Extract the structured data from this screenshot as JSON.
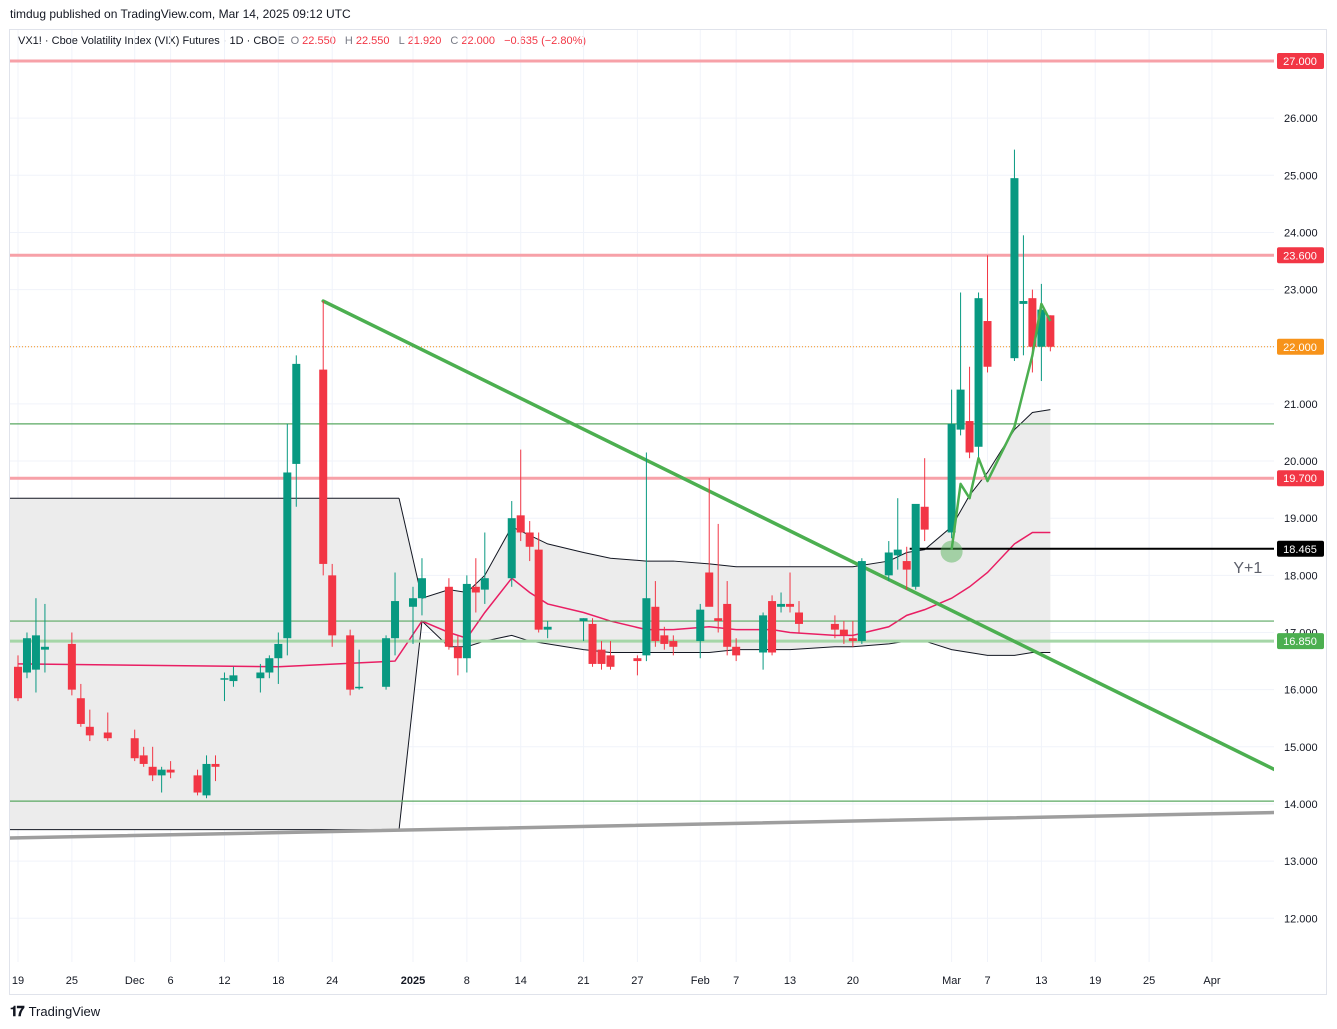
{
  "header": {
    "publisher": "timdug published on TradingView.com, Mar 14, 2025 09:12 UTC"
  },
  "legend": {
    "symbol": "VX1! · Cboe Volatility Index (VIX) Futures · 1D · CBOE",
    "o_label": "O",
    "o_value": "22.550",
    "h_label": "H",
    "h_value": "22.550",
    "l_label": "L",
    "l_value": "21.920",
    "c_label": "C",
    "c_value": "22.000",
    "change": "−0.635 (−2.80%)"
  },
  "footer": {
    "brand": "TradingView",
    "logo_icon": "tradingview-logo-icon"
  },
  "colors": {
    "up": "#089981",
    "down": "#f23645",
    "resistance": "#f7a1a8",
    "support": "#5aa862",
    "trendline": "#4caf50",
    "basis": "#e91e63",
    "band_fill": "#ececec",
    "last_price": "#f7931a",
    "tick_label_fill": "#f23645",
    "black_level": "#000000",
    "grey_line": "#9e9e9e"
  },
  "chart_data": {
    "type": "candlestick",
    "symbol": "VX1!",
    "y_axis": {
      "ticks": [
        "12.000",
        "13.000",
        "14.000",
        "15.000",
        "16.000",
        "17.000",
        "18.000",
        "19.000",
        "20.000",
        "21.000",
        "22.000",
        "23.000",
        "24.000",
        "25.000",
        "26.000"
      ],
      "range": [
        11.3,
        27.8
      ],
      "side": "right"
    },
    "x_axis": {
      "ticks": [
        {
          "label": "19",
          "date": "2024-11-19",
          "bold": false
        },
        {
          "label": "25",
          "date": "2024-11-25",
          "bold": false
        },
        {
          "label": "Dec",
          "date": "2024-12-02",
          "bold": false
        },
        {
          "label": "6",
          "date": "2024-12-06",
          "bold": false
        },
        {
          "label": "12",
          "date": "2024-12-12",
          "bold": false
        },
        {
          "label": "18",
          "date": "2024-12-18",
          "bold": false
        },
        {
          "label": "24",
          "date": "2024-12-24",
          "bold": false
        },
        {
          "label": "2025",
          "date": "2025-01-02",
          "bold": true
        },
        {
          "label": "8",
          "date": "2025-01-08",
          "bold": false
        },
        {
          "label": "14",
          "date": "2025-01-14",
          "bold": false
        },
        {
          "label": "21",
          "date": "2025-01-21",
          "bold": false
        },
        {
          "label": "27",
          "date": "2025-01-27",
          "bold": false
        },
        {
          "label": "Feb",
          "date": "2025-02-03",
          "bold": false
        },
        {
          "label": "7",
          "date": "2025-02-07",
          "bold": false
        },
        {
          "label": "13",
          "date": "2025-02-13",
          "bold": false
        },
        {
          "label": "20",
          "date": "2025-02-20",
          "bold": false
        },
        {
          "label": "Mar",
          "date": "2025-03-03",
          "bold": false
        },
        {
          "label": "7",
          "date": "2025-03-07",
          "bold": false
        },
        {
          "label": "13",
          "date": "2025-03-13",
          "bold": false
        },
        {
          "label": "19",
          "date": "2025-03-19",
          "bold": false
        },
        {
          "label": "25",
          "date": "2025-03-25",
          "bold": false
        },
        {
          "label": "Apr",
          "date": "2025-04-01",
          "bold": false
        }
      ]
    },
    "candles": [
      {
        "date": "2024-11-19",
        "o": 16.4,
        "h": 16.6,
        "l": 15.8,
        "c": 15.85
      },
      {
        "date": "2024-11-20",
        "o": 16.3,
        "h": 17.0,
        "l": 16.2,
        "c": 16.9
      },
      {
        "date": "2024-11-21",
        "o": 16.35,
        "h": 17.6,
        "l": 15.95,
        "c": 16.95
      },
      {
        "date": "2024-11-22",
        "o": 16.7,
        "h": 17.5,
        "l": 16.3,
        "c": 16.75
      },
      {
        "date": "2024-11-25",
        "o": 16.8,
        "h": 17.0,
        "l": 15.9,
        "c": 16.0
      },
      {
        "date": "2024-11-26",
        "o": 15.85,
        "h": 16.1,
        "l": 15.35,
        "c": 15.4
      },
      {
        "date": "2024-11-27",
        "o": 15.35,
        "h": 15.65,
        "l": 15.1,
        "c": 15.2
      },
      {
        "date": "2024-11-29",
        "o": 15.25,
        "h": 15.6,
        "l": 15.1,
        "c": 15.15
      },
      {
        "date": "2024-12-02",
        "o": 15.15,
        "h": 15.3,
        "l": 14.75,
        "c": 14.8
      },
      {
        "date": "2024-12-03",
        "o": 14.85,
        "h": 15.0,
        "l": 14.65,
        "c": 14.7
      },
      {
        "date": "2024-12-04",
        "o": 14.65,
        "h": 15.0,
        "l": 14.4,
        "c": 14.5
      },
      {
        "date": "2024-12-05",
        "o": 14.5,
        "h": 14.65,
        "l": 14.2,
        "c": 14.6
      },
      {
        "date": "2024-12-06",
        "o": 14.6,
        "h": 14.75,
        "l": 14.45,
        "c": 14.55
      },
      {
        "date": "2024-12-09",
        "o": 14.5,
        "h": 14.6,
        "l": 14.15,
        "c": 14.2
      },
      {
        "date": "2024-12-10",
        "o": 14.15,
        "h": 14.85,
        "l": 14.1,
        "c": 14.7
      },
      {
        "date": "2024-12-11",
        "o": 14.7,
        "h": 14.85,
        "l": 14.4,
        "c": 14.65
      },
      {
        "date": "2024-12-12",
        "o": 16.2,
        "h": 16.3,
        "l": 15.8,
        "c": 16.2
      },
      {
        "date": "2024-12-13",
        "o": 16.15,
        "h": 16.4,
        "l": 16.05,
        "c": 16.25
      },
      {
        "date": "2024-12-16",
        "o": 16.2,
        "h": 16.45,
        "l": 15.95,
        "c": 16.3
      },
      {
        "date": "2024-12-17",
        "o": 16.3,
        "h": 16.6,
        "l": 16.2,
        "c": 16.55
      },
      {
        "date": "2024-12-18",
        "o": 16.55,
        "h": 17.0,
        "l": 16.1,
        "c": 16.8
      },
      {
        "date": "2024-12-19",
        "o": 16.9,
        "h": 20.65,
        "l": 16.6,
        "c": 19.8
      },
      {
        "date": "2024-12-20",
        "o": 19.95,
        "h": 21.85,
        "l": 19.2,
        "c": 21.7
      },
      {
        "date": "2024-12-23",
        "o": 21.6,
        "h": 22.8,
        "l": 18.0,
        "c": 18.2
      },
      {
        "date": "2024-12-24",
        "o": 18.0,
        "h": 18.2,
        "l": 16.75,
        "c": 16.95
      },
      {
        "date": "2024-12-26",
        "o": 16.95,
        "h": 17.05,
        "l": 15.9,
        "c": 16.0
      },
      {
        "date": "2024-12-27",
        "o": 16.05,
        "h": 16.7,
        "l": 16.0,
        "c": 16.05
      },
      {
        "date": "2024-12-30",
        "o": 16.05,
        "h": 16.95,
        "l": 16.0,
        "c": 16.9
      },
      {
        "date": "2024-12-31",
        "o": 16.9,
        "h": 18.05,
        "l": 16.6,
        "c": 17.55
      },
      {
        "date": "2025-01-02",
        "o": 17.45,
        "h": 17.8,
        "l": 16.8,
        "c": 17.6
      },
      {
        "date": "2025-01-03",
        "o": 17.6,
        "h": 18.3,
        "l": 17.3,
        "c": 17.95
      },
      {
        "date": "2025-01-06",
        "o": 17.8,
        "h": 17.95,
        "l": 16.7,
        "c": 16.75
      },
      {
        "date": "2025-01-07",
        "o": 16.75,
        "h": 16.95,
        "l": 16.25,
        "c": 16.55
      },
      {
        "date": "2025-01-08",
        "o": 16.55,
        "h": 18.0,
        "l": 16.3,
        "c": 17.85
      },
      {
        "date": "2025-01-09",
        "o": 17.8,
        "h": 18.3,
        "l": 17.35,
        "c": 17.7
      },
      {
        "date": "2025-01-10",
        "o": 17.75,
        "h": 18.75,
        "l": 17.5,
        "c": 17.95
      },
      {
        "date": "2025-01-13",
        "o": 17.95,
        "h": 19.3,
        "l": 17.8,
        "c": 19.0
      },
      {
        "date": "2025-01-14",
        "o": 19.05,
        "h": 20.2,
        "l": 18.6,
        "c": 18.75
      },
      {
        "date": "2025-01-15",
        "o": 18.75,
        "h": 18.95,
        "l": 18.25,
        "c": 18.5
      },
      {
        "date": "2025-01-16",
        "o": 18.45,
        "h": 18.75,
        "l": 17.0,
        "c": 17.05
      },
      {
        "date": "2025-01-17",
        "o": 17.05,
        "h": 17.2,
        "l": 16.9,
        "c": 17.1
      },
      {
        "date": "2025-01-21",
        "o": 17.2,
        "h": 17.25,
        "l": 16.85,
        "c": 17.25
      },
      {
        "date": "2025-01-22",
        "o": 17.15,
        "h": 17.25,
        "l": 16.4,
        "c": 16.45
      },
      {
        "date": "2025-01-23",
        "o": 16.7,
        "h": 16.85,
        "l": 16.35,
        "c": 16.45
      },
      {
        "date": "2025-01-24",
        "o": 16.6,
        "h": 16.85,
        "l": 16.35,
        "c": 16.4
      },
      {
        "date": "2025-01-27",
        "o": 16.55,
        "h": 16.6,
        "l": 16.25,
        "c": 16.5
      },
      {
        "date": "2025-01-28",
        "o": 16.6,
        "h": 20.15,
        "l": 16.5,
        "c": 17.6
      },
      {
        "date": "2025-01-29",
        "o": 17.45,
        "h": 17.9,
        "l": 16.75,
        "c": 16.85
      },
      {
        "date": "2025-01-30",
        "o": 16.95,
        "h": 17.1,
        "l": 16.7,
        "c": 16.8
      },
      {
        "date": "2025-01-31",
        "o": 16.85,
        "h": 16.95,
        "l": 16.6,
        "c": 16.75
      },
      {
        "date": "2025-02-03",
        "o": 16.85,
        "h": 17.5,
        "l": 16.55,
        "c": 17.4
      },
      {
        "date": "2025-02-04",
        "o": 18.05,
        "h": 19.7,
        "l": 17.5,
        "c": 17.45
      },
      {
        "date": "2025-02-05",
        "o": 17.25,
        "h": 18.9,
        "l": 17.0,
        "c": 17.2
      },
      {
        "date": "2025-02-06",
        "o": 17.5,
        "h": 17.9,
        "l": 16.6,
        "c": 16.75
      },
      {
        "date": "2025-02-07",
        "o": 16.75,
        "h": 16.9,
        "l": 16.5,
        "c": 16.6
      },
      {
        "date": "2025-02-10",
        "o": 16.65,
        "h": 17.35,
        "l": 16.35,
        "c": 17.3
      },
      {
        "date": "2025-02-11",
        "o": 17.55,
        "h": 17.65,
        "l": 16.6,
        "c": 16.65
      },
      {
        "date": "2025-02-12",
        "o": 17.45,
        "h": 17.7,
        "l": 17.35,
        "c": 17.5
      },
      {
        "date": "2025-02-13",
        "o": 17.5,
        "h": 18.05,
        "l": 17.35,
        "c": 17.45
      },
      {
        "date": "2025-02-14",
        "o": 17.35,
        "h": 17.55,
        "l": 17.0,
        "c": 17.15
      },
      {
        "date": "2025-02-18",
        "o": 17.15,
        "h": 17.3,
        "l": 16.9,
        "c": 17.05
      },
      {
        "date": "2025-02-19",
        "o": 17.05,
        "h": 17.2,
        "l": 16.8,
        "c": 16.95
      },
      {
        "date": "2025-02-20",
        "o": 16.9,
        "h": 17.2,
        "l": 16.75,
        "c": 16.85
      },
      {
        "date": "2025-02-21",
        "o": 16.85,
        "h": 18.3,
        "l": 16.8,
        "c": 18.25
      },
      {
        "date": "2025-02-24",
        "o": 18.0,
        "h": 18.6,
        "l": 17.9,
        "c": 18.4
      },
      {
        "date": "2025-02-25",
        "o": 18.35,
        "h": 19.35,
        "l": 18.1,
        "c": 18.45
      },
      {
        "date": "2025-02-26",
        "o": 18.25,
        "h": 18.5,
        "l": 17.75,
        "c": 18.1
      },
      {
        "date": "2025-02-27",
        "o": 17.8,
        "h": 19.2,
        "l": 17.75,
        "c": 19.25
      },
      {
        "date": "2025-02-28",
        "o": 19.2,
        "h": 20.05,
        "l": 18.6,
        "c": 18.8
      },
      {
        "date": "2025-03-03",
        "o": 18.75,
        "h": 21.25,
        "l": 18.65,
        "c": 20.65
      },
      {
        "date": "2025-03-04",
        "o": 20.55,
        "h": 22.95,
        "l": 20.45,
        "c": 21.25
      },
      {
        "date": "2025-03-05",
        "o": 20.7,
        "h": 21.65,
        "l": 20.05,
        "c": 20.15
      },
      {
        "date": "2025-03-06",
        "o": 20.25,
        "h": 22.95,
        "l": 20.05,
        "c": 22.85
      },
      {
        "date": "2025-03-07",
        "o": 22.45,
        "h": 23.6,
        "l": 21.55,
        "c": 21.65
      },
      {
        "date": "2025-03-10",
        "o": 21.8,
        "h": 25.45,
        "l": 21.75,
        "c": 24.95
      },
      {
        "date": "2025-03-11",
        "o": 22.75,
        "h": 23.95,
        "l": 21.85,
        "c": 22.8
      },
      {
        "date": "2025-03-12",
        "o": 22.85,
        "h": 23.0,
        "l": 21.55,
        "c": 22.0
      },
      {
        "date": "2025-03-13",
        "o": 22.0,
        "h": 23.1,
        "l": 21.4,
        "c": 22.65
      },
      {
        "date": "2025-03-14",
        "o": 22.55,
        "h": 22.55,
        "l": 21.92,
        "c": 22.0
      }
    ],
    "keltner_band": {
      "segment1": {
        "x": [
          "2024-11-19",
          "2024-12-31"
        ],
        "upper": 19.35,
        "lower": 13.55
      },
      "segment2": {
        "x": [
          "2025-01-03",
          "2025-01-06",
          "2025-01-08",
          "2025-01-10",
          "2025-01-13",
          "2025-01-15",
          "2025-01-17",
          "2025-01-21",
          "2025-01-24",
          "2025-01-28",
          "2025-01-31",
          "2025-02-04",
          "2025-02-07",
          "2025-02-11",
          "2025-02-13",
          "2025-02-18",
          "2025-02-20",
          "2025-02-24",
          "2025-02-26",
          "2025-02-28",
          "2025-03-03",
          "2025-03-05",
          "2025-03-07",
          "2025-03-10",
          "2025-03-12",
          "2025-03-14"
        ],
        "upper": [
          17.6,
          17.75,
          17.7,
          18.0,
          18.85,
          18.7,
          18.55,
          18.4,
          18.3,
          18.25,
          18.25,
          18.2,
          18.15,
          18.15,
          18.15,
          18.15,
          18.15,
          18.25,
          18.4,
          18.45,
          18.85,
          19.4,
          19.8,
          20.55,
          20.85,
          20.9
        ],
        "basis": [
          17.2,
          17.0,
          16.9,
          17.35,
          17.95,
          17.7,
          17.5,
          17.35,
          17.2,
          17.05,
          17.05,
          17.1,
          17.05,
          17.05,
          17.0,
          16.95,
          16.95,
          17.1,
          17.3,
          17.4,
          17.6,
          17.8,
          18.05,
          18.55,
          18.75,
          18.75
        ],
        "lower": [
          17.2,
          16.75,
          16.75,
          16.85,
          16.95,
          16.85,
          16.8,
          16.7,
          16.65,
          16.65,
          16.65,
          16.65,
          16.7,
          16.7,
          16.7,
          16.75,
          16.75,
          16.8,
          16.85,
          16.85,
          16.7,
          16.65,
          16.6,
          16.6,
          16.65,
          16.65
        ]
      },
      "basis_segment1": {
        "x": [
          "2024-11-19",
          "2024-12-18",
          "2024-12-31"
        ],
        "values": [
          16.45,
          16.4,
          16.5
        ]
      }
    },
    "horizontal_levels": [
      {
        "price": 27.0,
        "label": "27.000",
        "kind": "resistance"
      },
      {
        "price": 23.6,
        "label": "23.600",
        "kind": "resistance"
      },
      {
        "price": 22.0,
        "label": "22.000",
        "kind": "last_price"
      },
      {
        "price": 20.65,
        "label": "",
        "kind": "support"
      },
      {
        "price": 19.7,
        "label": "19.700",
        "kind": "resistance"
      },
      {
        "price": 18.465,
        "label": "18.465",
        "kind": "black_level",
        "start": "2025-02-27"
      },
      {
        "price": 17.2,
        "label": "",
        "kind": "support"
      },
      {
        "price": 16.85,
        "label": "16.850",
        "kind": "support_thick"
      },
      {
        "price": 14.05,
        "label": "",
        "kind": "support"
      }
    ],
    "trendlines": [
      {
        "from": {
          "date": "2024-12-23",
          "price": 22.8
        },
        "to": {
          "date": "2025-04-08",
          "price": 14.6
        },
        "color": "trendline"
      },
      {
        "from": {
          "date": "2024-11-17",
          "price": 13.4
        },
        "to": {
          "date": "2025-04-08",
          "price": 13.85
        },
        "color": "grey_line"
      }
    ],
    "projection_path": [
      {
        "date": "2025-03-03",
        "price": 18.45
      },
      {
        "date": "2025-03-04",
        "price": 19.6
      },
      {
        "date": "2025-03-05",
        "price": 19.35
      },
      {
        "date": "2025-03-06",
        "price": 20.05
      },
      {
        "date": "2025-03-07",
        "price": 19.65
      },
      {
        "date": "2025-03-10",
        "price": 20.6
      },
      {
        "date": "2025-03-12",
        "price": 21.85
      },
      {
        "date": "2025-03-13",
        "price": 22.75
      },
      {
        "date": "2025-03-14",
        "price": 22.45
      }
    ],
    "marker": {
      "date": "2025-03-03",
      "price": 18.45
    },
    "annotation": {
      "text": "Y+1",
      "date": "2025-04-05",
      "price": 18.15
    }
  }
}
